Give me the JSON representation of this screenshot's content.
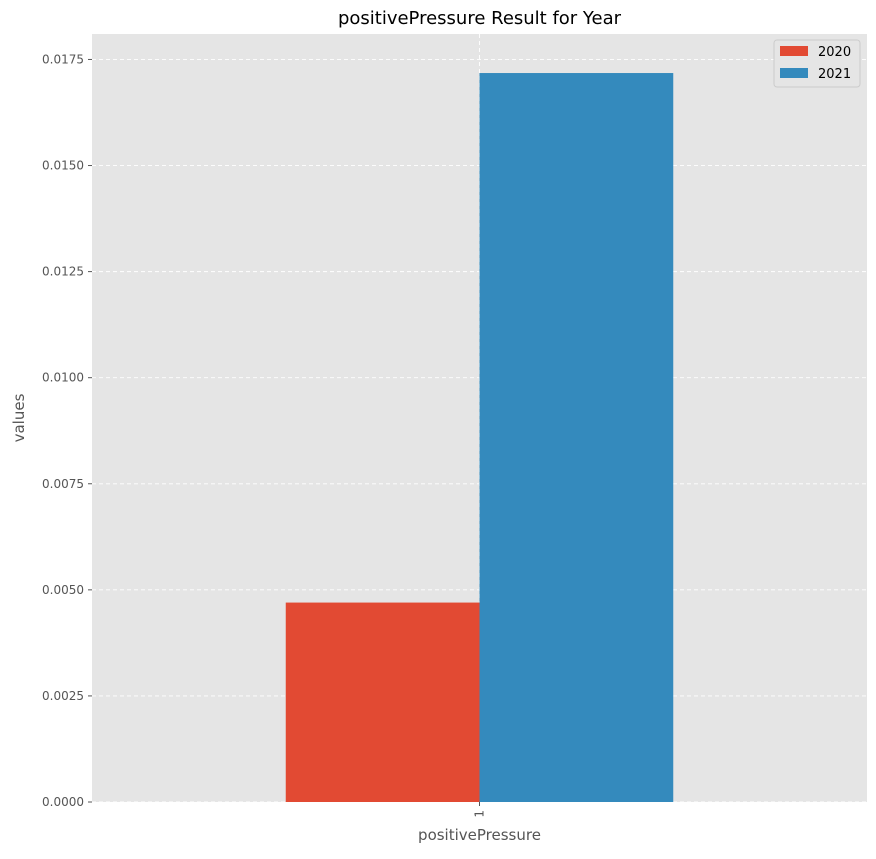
{
  "chart_data": {
    "type": "bar",
    "title": "positivePressure Result for Year",
    "xlabel": "positivePressure",
    "ylabel": "values",
    "categories": [
      "1"
    ],
    "series": [
      {
        "name": "2020",
        "values": [
          0.0047
        ],
        "color": "#E24A33"
      },
      {
        "name": "2021",
        "values": [
          0.01718
        ],
        "color": "#348ABD"
      }
    ],
    "ylim": [
      0,
      0.0181
    ],
    "yticks": [
      "0.0000",
      "0.0025",
      "0.0050",
      "0.0075",
      "0.0100",
      "0.0125",
      "0.0150",
      "0.0175"
    ],
    "grid": true,
    "legend_position": "top-right",
    "background_color": "#E5E5E5",
    "xtick_rotation": 90
  }
}
